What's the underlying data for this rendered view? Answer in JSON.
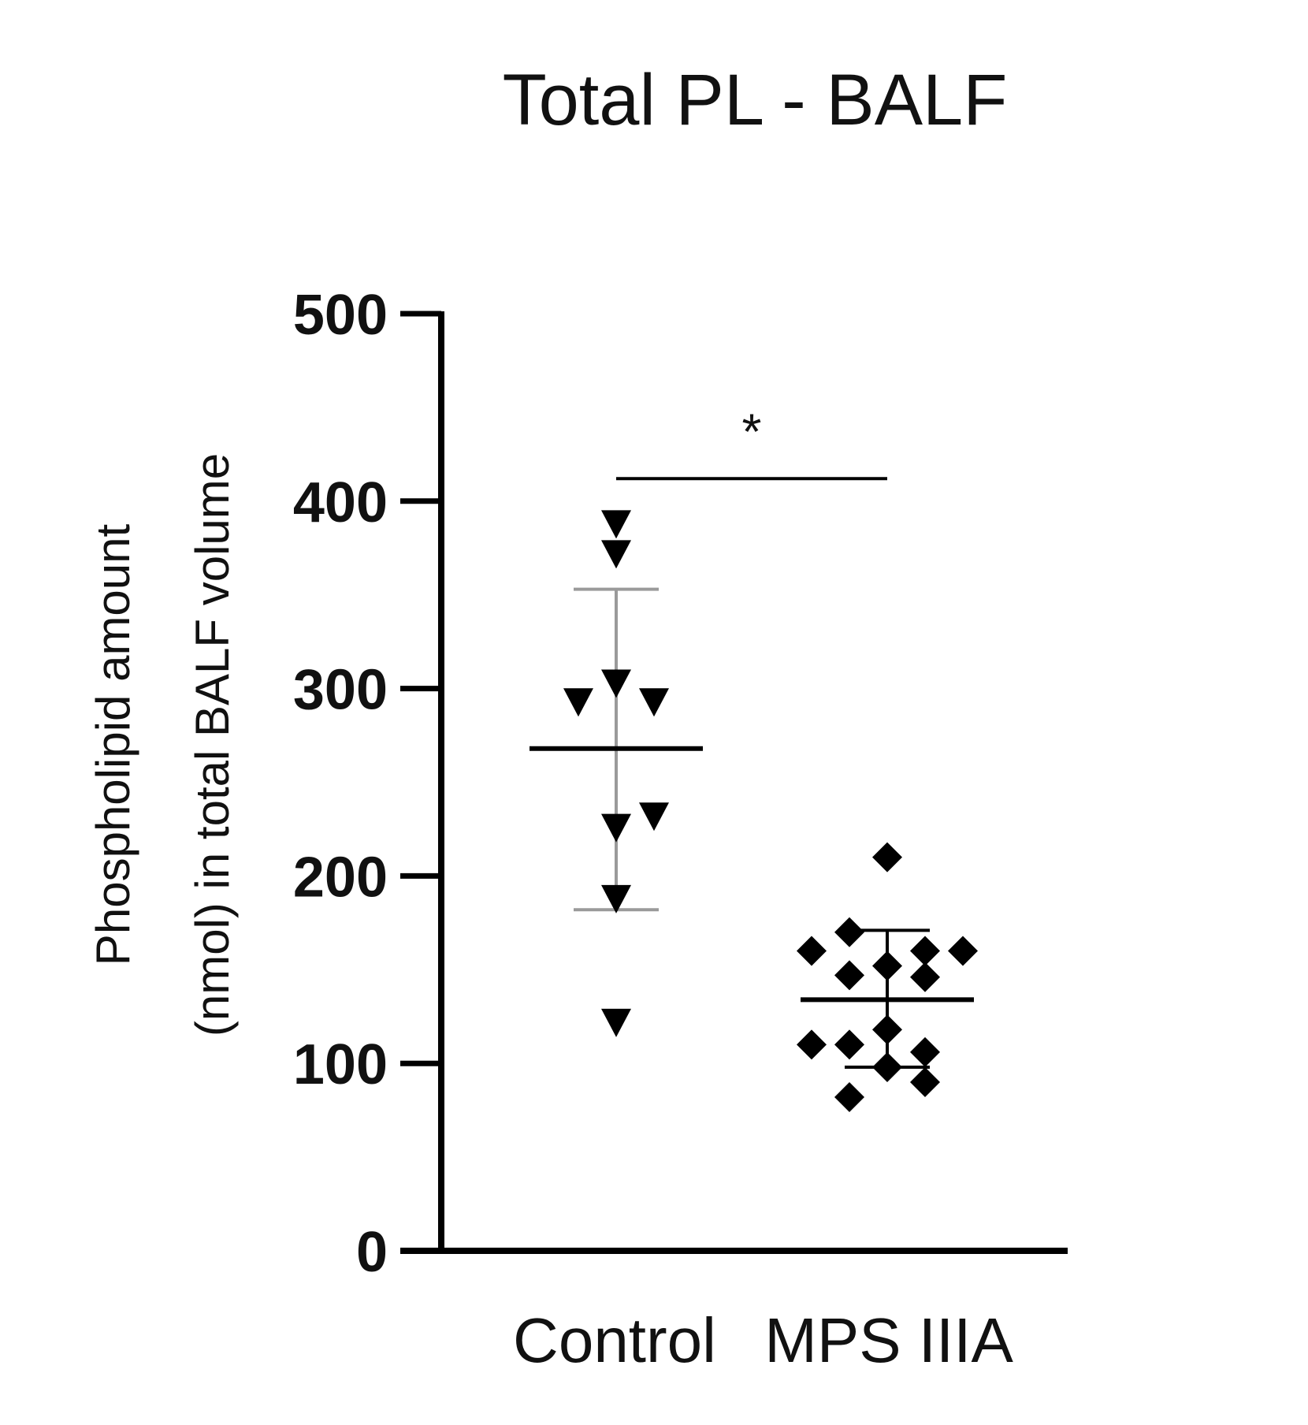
{
  "chart_data": {
    "type": "scatter",
    "title": "Total PL - BALF",
    "ylabel_lines": [
      "Phospholipid amount",
      "(nmol) in total BALF volume"
    ],
    "xlabel": "",
    "ylim": [
      0,
      500
    ],
    "yticks": [
      0,
      100,
      200,
      300,
      400,
      500
    ],
    "categories": [
      "Control",
      "MPS IIIA"
    ],
    "colors": {
      "points": "#000000",
      "axis": "#000000",
      "error_bars": "#9a9a9a"
    },
    "series": [
      {
        "category": "Control",
        "marker": "triangle-down",
        "points": [
          {
            "offset": 0,
            "y": 388
          },
          {
            "offset": 0,
            "y": 372
          },
          {
            "offset": -1,
            "y": 293
          },
          {
            "offset": 0,
            "y": 303
          },
          {
            "offset": 1,
            "y": 293
          },
          {
            "offset": 1,
            "y": 232
          },
          {
            "offset": 0,
            "y": 226
          },
          {
            "offset": 0,
            "y": 188
          },
          {
            "offset": 0,
            "y": 122
          }
        ],
        "mean": 268,
        "sd_range": [
          182,
          353
        ],
        "error_bar_color": "#9a9a9a"
      },
      {
        "category": "MPS IIIA",
        "marker": "diamond",
        "points": [
          {
            "offset": 0,
            "y": 210
          },
          {
            "offset": -1,
            "y": 170
          },
          {
            "offset": -2,
            "y": 160
          },
          {
            "offset": 1,
            "y": 160
          },
          {
            "offset": 2,
            "y": 160
          },
          {
            "offset": 0,
            "y": 152
          },
          {
            "offset": -1,
            "y": 147
          },
          {
            "offset": 1,
            "y": 146
          },
          {
            "offset": 0,
            "y": 118
          },
          {
            "offset": -2,
            "y": 110
          },
          {
            "offset": -1,
            "y": 110
          },
          {
            "offset": 1,
            "y": 106
          },
          {
            "offset": 0,
            "y": 98
          },
          {
            "offset": 1,
            "y": 90
          },
          {
            "offset": -1,
            "y": 82
          }
        ],
        "mean": 134,
        "sd_range": [
          98,
          171
        ],
        "error_bar_color": "#000000"
      }
    ],
    "significance": {
      "label": "*",
      "y": 412,
      "from": "Control",
      "to": "MPS IIIA"
    }
  }
}
